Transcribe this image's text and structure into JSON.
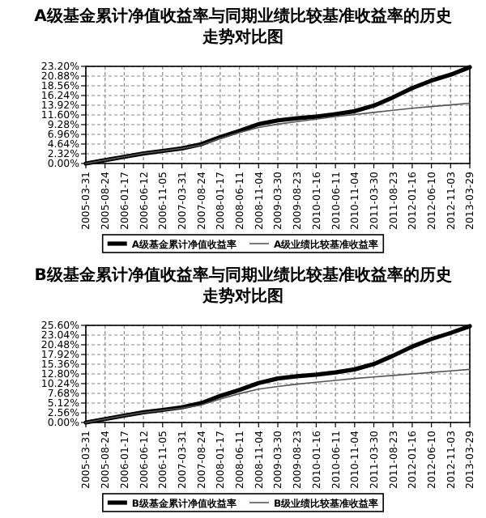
{
  "chart_data": [
    {
      "type": "line",
      "title": "A级基金累计净值收益率与同期业绩比较基准收益率的历史走势对比图",
      "categories": [
        "2005-03-31",
        "2005-08-24",
        "2006-01-17",
        "2006-06-12",
        "2006-11-05",
        "2007-03-31",
        "2007-08-24",
        "2008-01-17",
        "2008-06-11",
        "2008-11-04",
        "2009-03-30",
        "2009-08-23",
        "2010-01-16",
        "2010-06-11",
        "2010-11-04",
        "2011-03-30",
        "2011-08-23",
        "2012-01-16",
        "2012-06-10",
        "2012-11-03",
        "2013-03-29"
      ],
      "series": [
        {
          "name": "A级基金累计净值收益率",
          "color": "#000000",
          "values": [
            0,
            0.8,
            1.6,
            2.4,
            3.0,
            3.6,
            4.6,
            6.3,
            7.8,
            9.4,
            10.3,
            10.8,
            11.2,
            11.8,
            12.5,
            13.8,
            15.8,
            18.0,
            19.8,
            21.2,
            23.0
          ]
        },
        {
          "name": "A级业绩比较基准收益率",
          "color": "#555555",
          "values": [
            0,
            0.8,
            1.6,
            2.4,
            3.0,
            3.6,
            4.4,
            6.0,
            7.4,
            8.6,
            9.4,
            10.0,
            10.6,
            11.2,
            11.7,
            12.2,
            12.7,
            13.2,
            13.6,
            14.0,
            14.4
          ]
        }
      ],
      "ylim": [
        0,
        23.2
      ],
      "yticks": [
        {
          "value": 0,
          "label": "0.00%"
        },
        {
          "value": 2.32,
          "label": "2.32%"
        },
        {
          "value": 4.64,
          "label": "4.64%"
        },
        {
          "value": 6.96,
          "label": "6.96%"
        },
        {
          "value": 9.28,
          "label": "9.28%"
        },
        {
          "value": 11.6,
          "label": "11.60%"
        },
        {
          "value": 13.92,
          "label": "13.92%"
        },
        {
          "value": 16.24,
          "label": "16.24%"
        },
        {
          "value": 18.56,
          "label": "18.56%"
        },
        {
          "value": 20.88,
          "label": "20.88%"
        },
        {
          "value": 23.2,
          "label": "23.20%"
        }
      ],
      "grid": true,
      "legend": "bottom"
    },
    {
      "type": "line",
      "title": "B级基金累计净值收益率与同期业绩比较基准收益率的历史走势对比图",
      "categories": [
        "2005-03-31",
        "2005-08-24",
        "2006-01-17",
        "2006-06-12",
        "2006-11-05",
        "2007-03-31",
        "2007-08-24",
        "2008-01-17",
        "2008-06-11",
        "2008-11-04",
        "2009-03-30",
        "2009-08-23",
        "2010-01-16",
        "2010-06-11",
        "2010-11-04",
        "2011-03-30",
        "2011-08-23",
        "2012-01-16",
        "2012-06-10",
        "2012-11-03",
        "2013-03-29"
      ],
      "series": [
        {
          "name": "B级基金累计净值收益率",
          "color": "#000000",
          "values": [
            0,
            0.9,
            1.8,
            2.7,
            3.3,
            4.0,
            5.1,
            7.0,
            8.6,
            10.4,
            11.6,
            12.2,
            12.6,
            13.2,
            14.0,
            15.4,
            17.6,
            20.0,
            22.0,
            23.6,
            25.4
          ]
        },
        {
          "name": "B级业绩比较基准收益率",
          "color": "#555555",
          "values": [
            0,
            0.9,
            1.8,
            2.6,
            3.2,
            3.8,
            4.6,
            6.2,
            7.6,
            8.8,
            9.5,
            10.1,
            10.6,
            11.1,
            11.6,
            12.0,
            12.4,
            12.8,
            13.2,
            13.6,
            14.0
          ]
        }
      ],
      "ylim": [
        0,
        25.6
      ],
      "yticks": [
        {
          "value": 0,
          "label": "0.00%"
        },
        {
          "value": 2.56,
          "label": "2.56%"
        },
        {
          "value": 5.12,
          "label": "5.12%"
        },
        {
          "value": 7.68,
          "label": "7.68%"
        },
        {
          "value": 10.24,
          "label": "10.24%"
        },
        {
          "value": 12.8,
          "label": "12.80%"
        },
        {
          "value": 15.36,
          "label": "15.36%"
        },
        {
          "value": 17.92,
          "label": "17.92%"
        },
        {
          "value": 20.48,
          "label": "20.48%"
        },
        {
          "value": 23.04,
          "label": "23.04%"
        },
        {
          "value": 25.6,
          "label": "25.60%"
        }
      ],
      "grid": true,
      "legend": "bottom"
    }
  ]
}
